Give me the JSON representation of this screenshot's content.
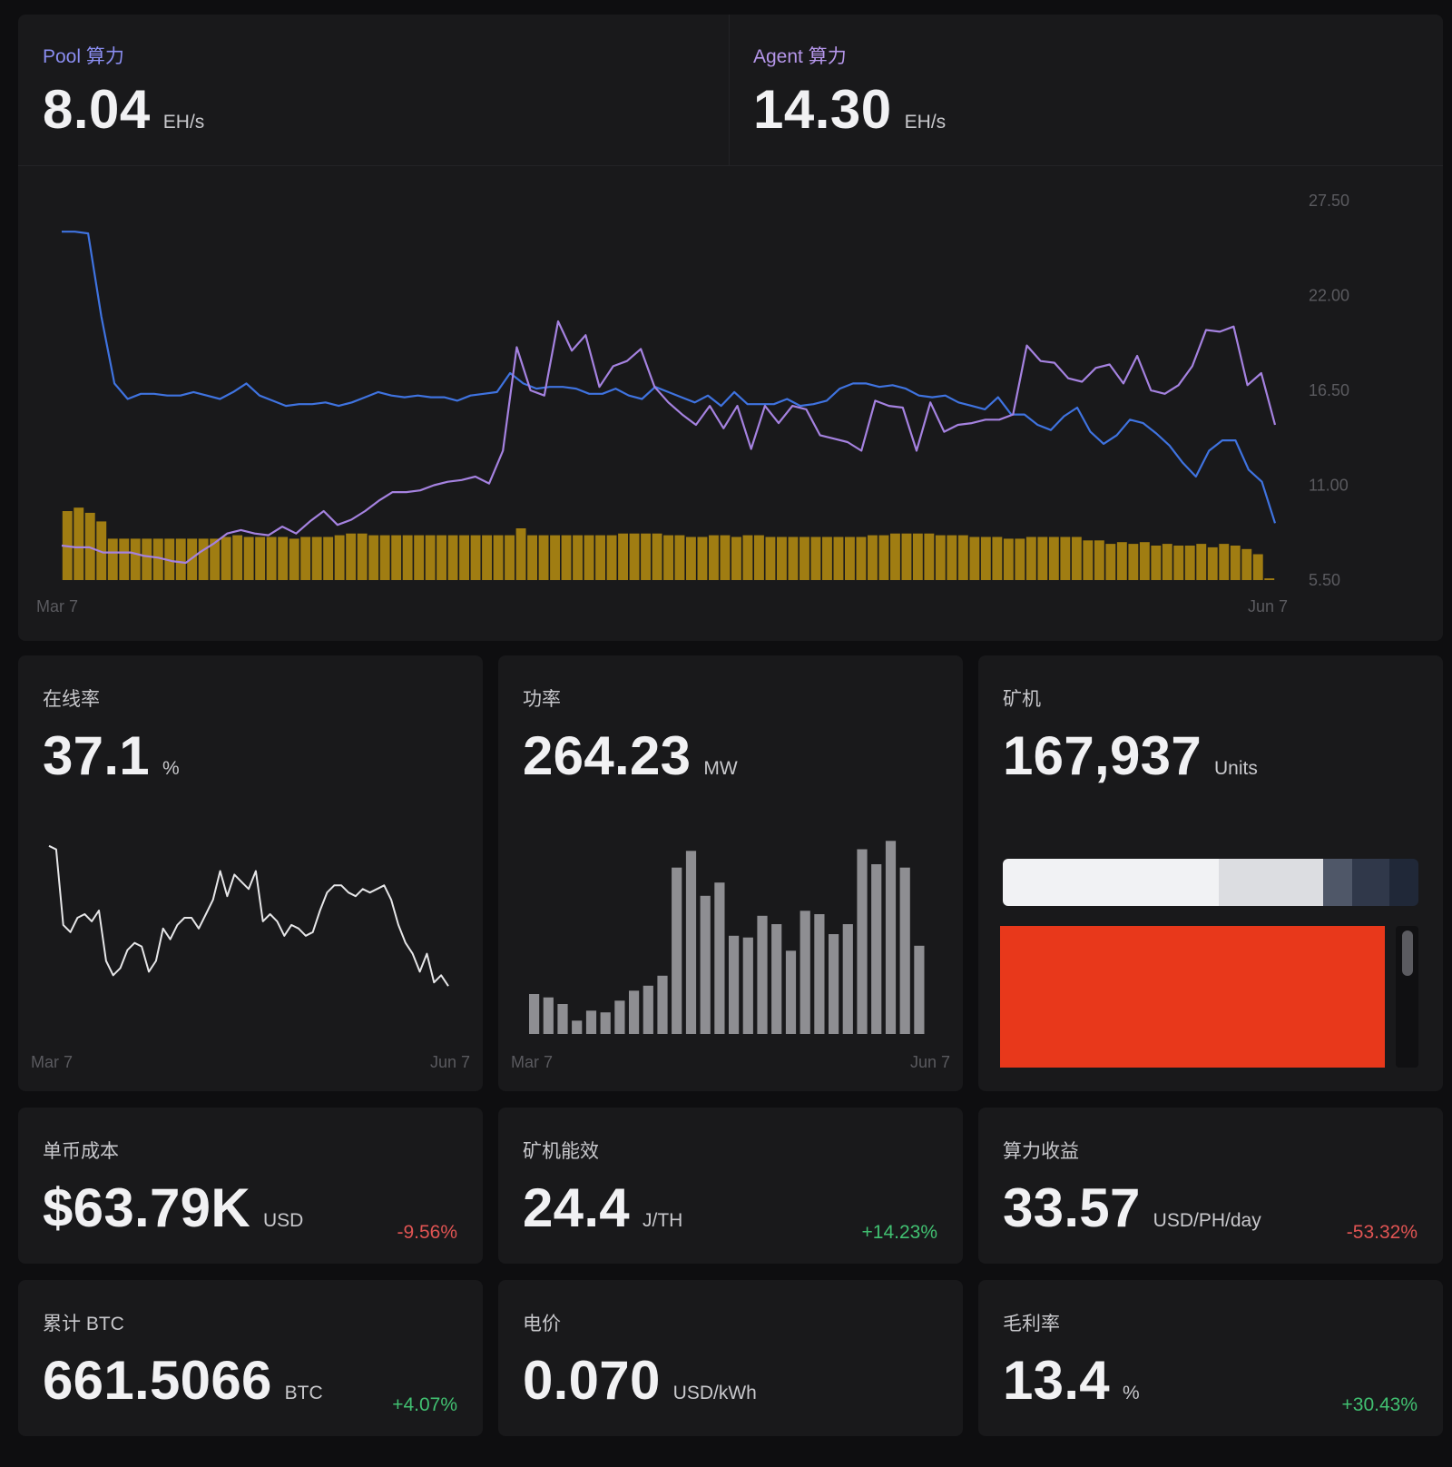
{
  "top": {
    "pool": {
      "label": "Pool 算力",
      "value": "8.04",
      "unit": "EH/s"
    },
    "agent": {
      "label": "Agent 算力",
      "value": "14.30",
      "unit": "EH/s"
    }
  },
  "chart_data": [
    {
      "type": "line",
      "x_start_label": "Mar 7",
      "x_end_label": "Jun 7",
      "yticks": [
        "27.50",
        "22.00",
        "16.50",
        "11.00",
        "5.50"
      ],
      "ylim": [
        5.5,
        27.5
      ],
      "series": [
        {
          "color": "#3f73e0",
          "values": [
            25.7,
            25.7,
            25.6,
            20.8,
            16.9,
            16.0,
            16.3,
            16.3,
            16.2,
            16.2,
            16.4,
            16.2,
            16.0,
            16.4,
            16.9,
            16.2,
            15.9,
            15.6,
            15.7,
            15.7,
            15.8,
            15.6,
            15.8,
            16.1,
            16.4,
            16.2,
            16.1,
            16.2,
            16.1,
            16.1,
            15.9,
            16.2,
            16.3,
            16.4,
            17.5,
            16.9,
            16.6,
            16.7,
            16.7,
            16.6,
            16.3,
            16.3,
            16.6,
            16.2,
            16.0,
            16.7,
            16.4,
            16.1,
            15.8,
            16.2,
            15.6,
            16.4,
            15.7,
            15.7,
            15.7,
            16.0,
            15.6,
            15.7,
            15.9,
            16.6,
            16.9,
            16.9,
            16.7,
            16.8,
            16.6,
            16.2,
            16.1,
            16.2,
            15.8,
            15.6,
            15.4,
            16.1,
            15.1,
            15.1,
            14.5,
            14.2,
            15.0,
            15.5,
            14.1,
            13.4,
            13.9,
            14.8,
            14.6,
            14.0,
            13.3,
            12.3,
            11.5,
            13.0,
            13.6,
            13.6,
            11.9,
            11.2,
            8.8
          ]
        },
        {
          "color": "#a582e0",
          "values": [
            7.5,
            7.4,
            7.4,
            7.1,
            7.1,
            7.1,
            6.9,
            6.8,
            6.6,
            6.5,
            7.1,
            7.6,
            8.2,
            8.4,
            8.2,
            8.1,
            8.6,
            8.2,
            8.9,
            9.5,
            8.7,
            9.0,
            9.5,
            10.1,
            10.6,
            10.6,
            10.7,
            11.0,
            11.2,
            11.3,
            11.5,
            11.1,
            13.0,
            19.0,
            16.5,
            16.2,
            20.5,
            18.8,
            19.7,
            16.7,
            17.9,
            18.2,
            18.9,
            16.7,
            15.8,
            15.1,
            14.5,
            15.6,
            14.3,
            15.6,
            13.1,
            15.6,
            14.6,
            15.6,
            15.4,
            13.9,
            13.7,
            13.5,
            13.0,
            15.9,
            15.6,
            15.5,
            13.0,
            15.8,
            14.1,
            14.5,
            14.6,
            14.8,
            14.8,
            15.1,
            19.1,
            18.2,
            18.1,
            17.2,
            17.0,
            17.8,
            18.0,
            16.9,
            18.5,
            16.5,
            16.3,
            16.8,
            17.9,
            20.0,
            19.9,
            20.2,
            16.8,
            17.5,
            14.5
          ]
        }
      ],
      "bar_series": {
        "color": "#a07d12",
        "values": [
          9.5,
          9.7,
          9.4,
          8.9,
          7.9,
          7.9,
          7.9,
          7.9,
          7.9,
          7.9,
          7.9,
          7.9,
          7.9,
          7.9,
          8.0,
          8.1,
          8.0,
          8.0,
          8.0,
          8.0,
          7.9,
          8.0,
          8.0,
          8.0,
          8.1,
          8.2,
          8.2,
          8.1,
          8.1,
          8.1,
          8.1,
          8.1,
          8.1,
          8.1,
          8.1,
          8.1,
          8.1,
          8.1,
          8.1,
          8.1,
          8.5,
          8.1,
          8.1,
          8.1,
          8.1,
          8.1,
          8.1,
          8.1,
          8.1,
          8.2,
          8.2,
          8.2,
          8.2,
          8.1,
          8.1,
          8.0,
          8.0,
          8.1,
          8.1,
          8.0,
          8.1,
          8.1,
          8.0,
          8.0,
          8.0,
          8.0,
          8.0,
          8.0,
          8.0,
          8.0,
          8.0,
          8.1,
          8.1,
          8.2,
          8.2,
          8.2,
          8.2,
          8.1,
          8.1,
          8.1,
          8.0,
          8.0,
          8.0,
          7.9,
          7.9,
          8.0,
          8.0,
          8.0,
          8.0,
          8.0,
          7.8,
          7.8,
          7.6,
          7.7,
          7.6,
          7.7,
          7.5,
          7.6,
          7.5,
          7.5,
          7.6,
          7.4,
          7.6,
          7.5,
          7.3,
          7.0,
          5.6
        ]
      }
    },
    {
      "type": "line",
      "x_start_label": "Mar 7",
      "x_end_label": "Jun 7",
      "series": [
        {
          "color": "#e6e6e8",
          "values": [
            88,
            86,
            44,
            40,
            48,
            50,
            46,
            52,
            24,
            16,
            20,
            30,
            34,
            32,
            18,
            24,
            42,
            36,
            44,
            48,
            48,
            42,
            50,
            58,
            74,
            60,
            72,
            68,
            64,
            74,
            46,
            50,
            46,
            38,
            44,
            42,
            38,
            40,
            52,
            62,
            66,
            66,
            62,
            60,
            64,
            62,
            64,
            66,
            58,
            44,
            34,
            28,
            18,
            28,
            12,
            16,
            10
          ]
        }
      ]
    },
    {
      "type": "bar",
      "x_start_label": "Mar 7",
      "x_end_label": "Jun 7",
      "values": [
        24,
        22,
        18,
        8,
        14,
        13,
        20,
        26,
        29,
        35,
        100,
        110,
        83,
        91,
        59,
        58,
        71,
        66,
        50,
        74,
        72,
        60,
        66,
        111,
        102,
        116,
        100,
        53
      ]
    }
  ],
  "cards": {
    "online": {
      "label": "在线率",
      "value": "37.1",
      "unit": "%"
    },
    "power": {
      "label": "功率",
      "value": "264.23",
      "unit": "MW"
    },
    "miners": {
      "label": "矿机",
      "value": "167,937",
      "unit": "Units",
      "segments": [
        0.52,
        0.25,
        0.07,
        0.09,
        0.07
      ],
      "segment_colors": [
        "#f1f2f4",
        "#dcdde1",
        "#4f5768",
        "#30384a",
        "#202838"
      ],
      "block_color": "#e8381b"
    },
    "coin_cost": {
      "label": "单币成本",
      "value": "$63.79K",
      "unit": "USD",
      "change": "-9.56%"
    },
    "efficiency": {
      "label": "矿机能效",
      "value": "24.4",
      "unit": "J/TH",
      "change": "+14.23%"
    },
    "hash_revenue": {
      "label": "算力收益",
      "value": "33.57",
      "unit": "USD/PH/day",
      "change": "-53.32%"
    },
    "btc_total": {
      "label": "累计 BTC",
      "value": "661.5066",
      "unit": "BTC",
      "change": "+4.07%"
    },
    "electricity": {
      "label": "电价",
      "value": "0.070",
      "unit": "USD/kWh"
    },
    "gross_margin": {
      "label": "毛利率",
      "value": "13.4",
      "unit": "%",
      "change": "+30.43%"
    }
  }
}
